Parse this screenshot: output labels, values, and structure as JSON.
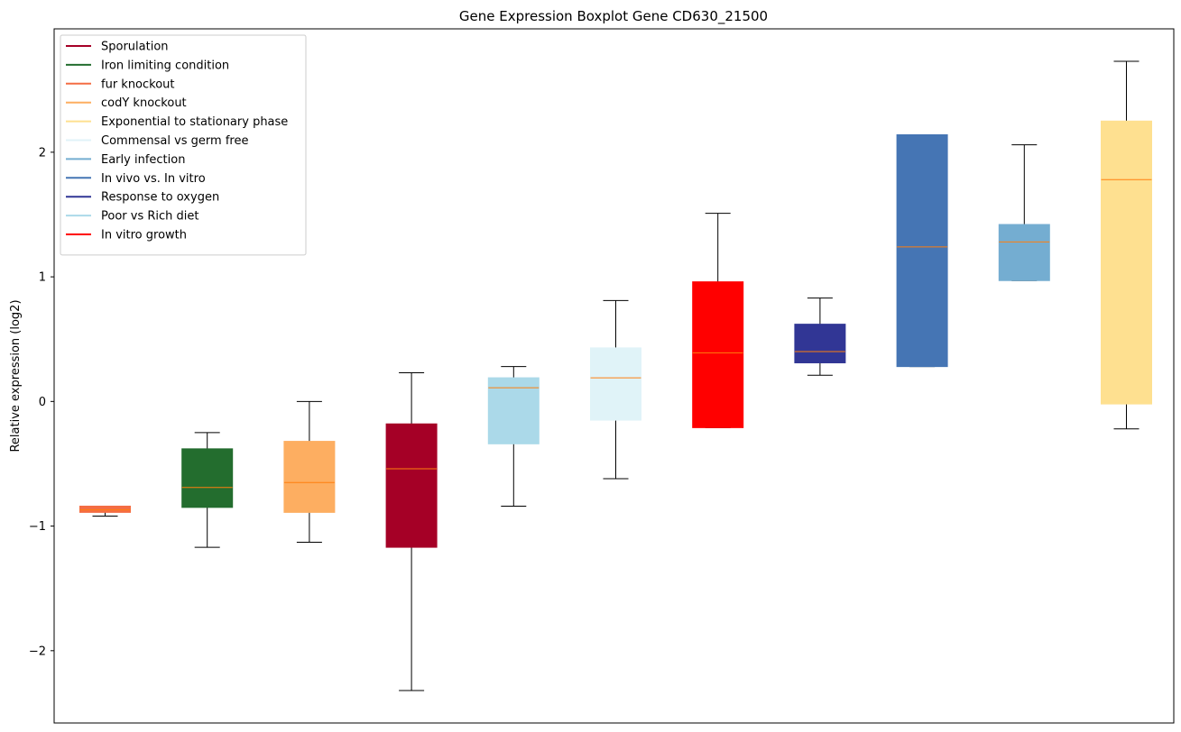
{
  "chart_data": {
    "type": "boxplot",
    "title": "Gene Expression Boxplot Gene CD630_21500",
    "xlabel": "",
    "ylabel": "Relative expression (log2)",
    "ylim": [
      -2.58,
      2.99
    ],
    "yticks": [
      {
        "value": 2,
        "label": "2"
      },
      {
        "value": 1,
        "label": "1"
      },
      {
        "value": 0,
        "label": "0"
      },
      {
        "value": -1,
        "label": "−1"
      },
      {
        "value": -2,
        "label": "−2"
      }
    ],
    "legend_position": "top-left",
    "legend": [
      {
        "label": "Sporulation",
        "color": "#a50026"
      },
      {
        "label": "Iron limiting condition",
        "color": "#236d2e"
      },
      {
        "label": "fur knockout",
        "color": "#f46d43"
      },
      {
        "label": "codY knockout",
        "color": "#fdae61"
      },
      {
        "label": "Exponential to stationary phase",
        "color": "#fee090"
      },
      {
        "label": "Commensal vs germ free",
        "color": "#e0f3f8"
      },
      {
        "label": "Early infection",
        "color": "#74add1"
      },
      {
        "label": "In vivo vs. In vitro",
        "color": "#4575b4"
      },
      {
        "label": "Response to oxygen",
        "color": "#313695"
      },
      {
        "label": "Poor vs Rich diet",
        "color": "#abd9e9"
      },
      {
        "label": "In vitro growth",
        "color": "#ff0000"
      }
    ],
    "median_color": "#ff7f0e",
    "boxes": [
      {
        "group": "fur knockout",
        "color": "#f46d43",
        "whisker_low": -0.92,
        "q1": -0.89,
        "median": -0.87,
        "q3": -0.84,
        "whisker_high": -0.84
      },
      {
        "group": "Iron limiting condition",
        "color": "#236d2e",
        "whisker_low": -1.17,
        "q1": -0.85,
        "median": -0.69,
        "q3": -0.38,
        "whisker_high": -0.25
      },
      {
        "group": "codY knockout",
        "color": "#fdae61",
        "whisker_low": -1.13,
        "q1": -0.89,
        "median": -0.65,
        "q3": -0.32,
        "whisker_high": 0.0
      },
      {
        "group": "Sporulation",
        "color": "#a50026",
        "whisker_low": -2.32,
        "q1": -1.17,
        "median": -0.54,
        "q3": -0.18,
        "whisker_high": 0.23
      },
      {
        "group": "Poor vs Rich diet",
        "color": "#abd9e9",
        "whisker_low": -0.84,
        "q1": -0.34,
        "median": 0.11,
        "q3": 0.19,
        "whisker_high": 0.28
      },
      {
        "group": "Commensal vs germ free",
        "color": "#e0f3f8",
        "whisker_low": -0.62,
        "q1": -0.15,
        "median": 0.19,
        "q3": 0.43,
        "whisker_high": 0.81
      },
      {
        "group": "In vitro growth",
        "color": "#ff0000",
        "whisker_low": -0.21,
        "q1": -0.21,
        "median": 0.39,
        "q3": 0.96,
        "whisker_high": 1.51
      },
      {
        "group": "Response to oxygen",
        "color": "#313695",
        "whisker_low": 0.21,
        "q1": 0.31,
        "median": 0.4,
        "q3": 0.62,
        "whisker_high": 0.83
      },
      {
        "group": "In vivo vs. In vitro",
        "color": "#4575b4",
        "whisker_low": 0.28,
        "q1": 0.28,
        "median": 1.24,
        "q3": 2.14,
        "whisker_high": 2.14
      },
      {
        "group": "Early infection",
        "color": "#74add1",
        "whisker_low": 0.97,
        "q1": 0.97,
        "median": 1.28,
        "q3": 1.42,
        "whisker_high": 2.06
      },
      {
        "group": "Exponential to stationary phase",
        "color": "#fee090",
        "whisker_low": -0.22,
        "q1": -0.02,
        "median": 1.78,
        "q3": 2.25,
        "whisker_high": 2.73
      }
    ]
  }
}
